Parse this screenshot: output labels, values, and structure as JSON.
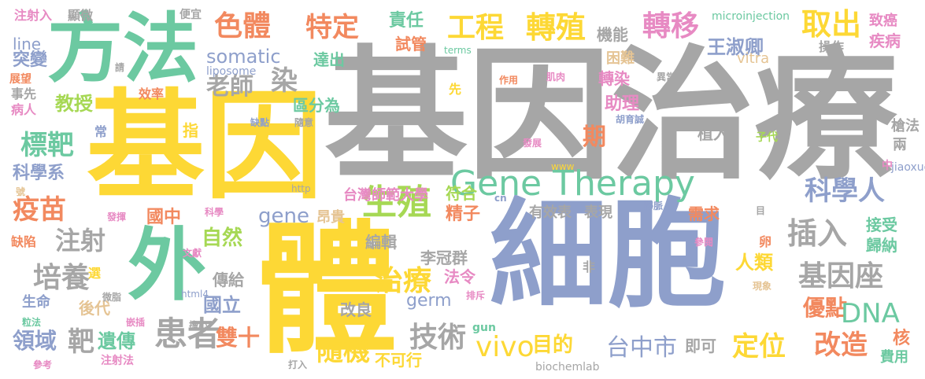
{
  "palette": {
    "gray": "#a6a6a6",
    "yellow": "#fdd835",
    "blue": "#8e9fcb",
    "green": "#6cc9a1",
    "orange": "#f2895f",
    "pink": "#e78ac3",
    "lime": "#a6d854",
    "tan": "#e5c494"
  },
  "words": [
    {
      "text": "基因治療",
      "color": "gray"
    },
    {
      "text": "基因",
      "color": "yellow"
    },
    {
      "text": "細胞",
      "color": "blue"
    },
    {
      "text": "方法",
      "color": "green"
    },
    {
      "text": "體",
      "color": "yellow"
    },
    {
      "text": "外",
      "color": "green"
    },
    {
      "text": "Gene Therapy",
      "color": "green"
    },
    {
      "text": "生殖",
      "color": "lime"
    },
    {
      "text": "轉殖",
      "color": "yellow"
    },
    {
      "text": "工程",
      "color": "yellow"
    },
    {
      "text": "轉移",
      "color": "pink"
    },
    {
      "text": "取出",
      "color": "yellow"
    },
    {
      "text": "色體",
      "color": "orange"
    },
    {
      "text": "特定",
      "color": "orange"
    },
    {
      "text": "科學人",
      "color": "blue"
    },
    {
      "text": "插入",
      "color": "gray"
    },
    {
      "text": "基因座",
      "color": "gray"
    },
    {
      "text": "優點",
      "color": "orange"
    },
    {
      "text": "DNA",
      "color": "green"
    },
    {
      "text": "患者",
      "color": "gray"
    },
    {
      "text": "疫苗",
      "color": "orange"
    },
    {
      "text": "注射",
      "color": "gray"
    },
    {
      "text": "培養",
      "color": "gray"
    },
    {
      "text": "標靶",
      "color": "green"
    },
    {
      "text": "治療",
      "color": "yellow"
    },
    {
      "text": "vivo",
      "color": "yellow"
    },
    {
      "text": "技術",
      "color": "gray"
    },
    {
      "text": "定位",
      "color": "yellow"
    },
    {
      "text": "改造",
      "color": "orange"
    },
    {
      "text": "台中市",
      "color": "blue"
    },
    {
      "text": "隨機",
      "color": "yellow"
    },
    {
      "text": "雙十",
      "color": "orange"
    },
    {
      "text": "靶",
      "color": "gray"
    },
    {
      "text": "領域",
      "color": "blue"
    },
    {
      "text": "遺傳",
      "color": "green"
    },
    {
      "text": "目的",
      "color": "yellow"
    },
    {
      "text": "染",
      "color": "gray"
    },
    {
      "text": "老師",
      "color": "gray"
    },
    {
      "text": "台灣師範大學",
      "color": "pink"
    },
    {
      "text": "somatic",
      "color": "blue"
    },
    {
      "text": "教授",
      "color": "lime"
    },
    {
      "text": "科學系",
      "color": "blue"
    },
    {
      "text": "自然",
      "color": "lime"
    },
    {
      "text": "國中",
      "color": "orange"
    },
    {
      "text": "gene",
      "color": "blue"
    },
    {
      "text": "國立",
      "color": "blue"
    },
    {
      "text": "germ",
      "color": "blue"
    },
    {
      "text": "生命",
      "color": "blue"
    },
    {
      "text": "後代",
      "color": "tan"
    },
    {
      "text": "責任",
      "color": "green"
    },
    {
      "text": "試管",
      "color": "orange"
    },
    {
      "text": "機能",
      "color": "gray"
    },
    {
      "text": "王淑卿",
      "color": "blue"
    },
    {
      "text": "轉染",
      "color": "pink"
    },
    {
      "text": "助理",
      "color": "pink"
    },
    {
      "text": "期",
      "color": "orange"
    },
    {
      "text": "植入",
      "color": "gray"
    },
    {
      "text": "精子",
      "color": "orange"
    },
    {
      "text": "符合",
      "color": "lime"
    },
    {
      "text": "昂貴",
      "color": "tan"
    },
    {
      "text": "有效表",
      "color": "gray"
    },
    {
      "text": "表現",
      "color": "gray"
    },
    {
      "text": "需求",
      "color": "orange"
    },
    {
      "text": "接受",
      "color": "green"
    },
    {
      "text": "歸納",
      "color": "green"
    },
    {
      "text": "人類",
      "color": "yellow"
    },
    {
      "text": "法令",
      "color": "pink"
    },
    {
      "text": "編輯",
      "color": "gray"
    },
    {
      "text": "李冠群",
      "color": "gray"
    },
    {
      "text": "傳給",
      "color": "gray"
    },
    {
      "text": "改良",
      "color": "gray"
    },
    {
      "text": "不可行",
      "color": "yellow"
    },
    {
      "text": "即可",
      "color": "gray"
    },
    {
      "text": "核",
      "color": "orange"
    },
    {
      "text": "費用",
      "color": "green"
    },
    {
      "text": "區分為",
      "color": "green"
    },
    {
      "text": "達出",
      "color": "green"
    },
    {
      "text": "突變",
      "color": "blue"
    },
    {
      "text": "line",
      "color": "blue"
    },
    {
      "text": "liposome",
      "color": "blue"
    },
    {
      "text": "困難",
      "color": "tan"
    },
    {
      "text": "vitra",
      "color": "tan"
    },
    {
      "text": "microinjection",
      "color": "green"
    },
    {
      "text": "致癌",
      "color": "pink"
    },
    {
      "text": "疾病",
      "color": "pink"
    },
    {
      "text": "操作",
      "color": "gray"
    },
    {
      "text": "槍法",
      "color": "gray"
    },
    {
      "text": "兩",
      "color": "gray"
    },
    {
      "text": "子代",
      "color": "lime"
    },
    {
      "text": "jiaoxue",
      "color": "blue"
    },
    {
      "text": "中",
      "color": "pink"
    },
    {
      "text": "注射入",
      "color": "pink"
    },
    {
      "text": "顯微",
      "color": "gray"
    },
    {
      "text": "便宜",
      "color": "gray"
    },
    {
      "text": "展望",
      "color": "orange"
    },
    {
      "text": "事先",
      "color": "gray"
    },
    {
      "text": "病人",
      "color": "pink"
    },
    {
      "text": "請",
      "color": "gray"
    },
    {
      "text": "效率",
      "color": "orange"
    },
    {
      "text": "先",
      "color": "yellow"
    },
    {
      "text": "作用",
      "color": "orange"
    },
    {
      "text": "肌肉",
      "color": "pink"
    },
    {
      "text": "異常",
      "color": "gray"
    },
    {
      "text": "胡育誠",
      "color": "blue"
    },
    {
      "text": "terms",
      "color": "green"
    },
    {
      "text": "指",
      "color": "yellow"
    },
    {
      "text": "常",
      "color": "blue"
    },
    {
      "text": "缺點",
      "color": "blue"
    },
    {
      "text": "隨意",
      "color": "gray"
    },
    {
      "text": "發展",
      "color": "pink"
    },
    {
      "text": "www",
      "color": "yellow"
    },
    {
      "text": "http",
      "color": "gray"
    },
    {
      "text": "號",
      "color": "tan"
    },
    {
      "text": "發揮",
      "color": "pink"
    },
    {
      "text": "科學",
      "color": "pink"
    },
    {
      "text": "文獻",
      "color": "pink"
    },
    {
      "text": "cn",
      "color": "blue"
    },
    {
      "text": "靜脈",
      "color": "blue"
    },
    {
      "text": "目",
      "color": "gray"
    },
    {
      "text": "參閱",
      "color": "pink"
    },
    {
      "text": "非",
      "color": "gray"
    },
    {
      "text": "現象",
      "color": "tan"
    },
    {
      "text": "缺陷",
      "color": "orange"
    },
    {
      "text": "選",
      "color": "yellow"
    },
    {
      "text": "微脂",
      "color": "gray"
    },
    {
      "text": "html4",
      "color": "blue"
    },
    {
      "text": "排斥",
      "color": "pink"
    },
    {
      "text": "卵",
      "color": "orange"
    },
    {
      "text": "粒法",
      "color": "green"
    },
    {
      "text": "嵌插",
      "color": "pink"
    },
    {
      "text": "擔心",
      "color": "gray"
    },
    {
      "text": "gun",
      "color": "green"
    },
    {
      "text": "注射法",
      "color": "pink"
    },
    {
      "text": "打入",
      "color": "gray"
    },
    {
      "text": "參考",
      "color": "pink"
    },
    {
      "text": "biochemlab",
      "color": "gray"
    }
  ]
}
